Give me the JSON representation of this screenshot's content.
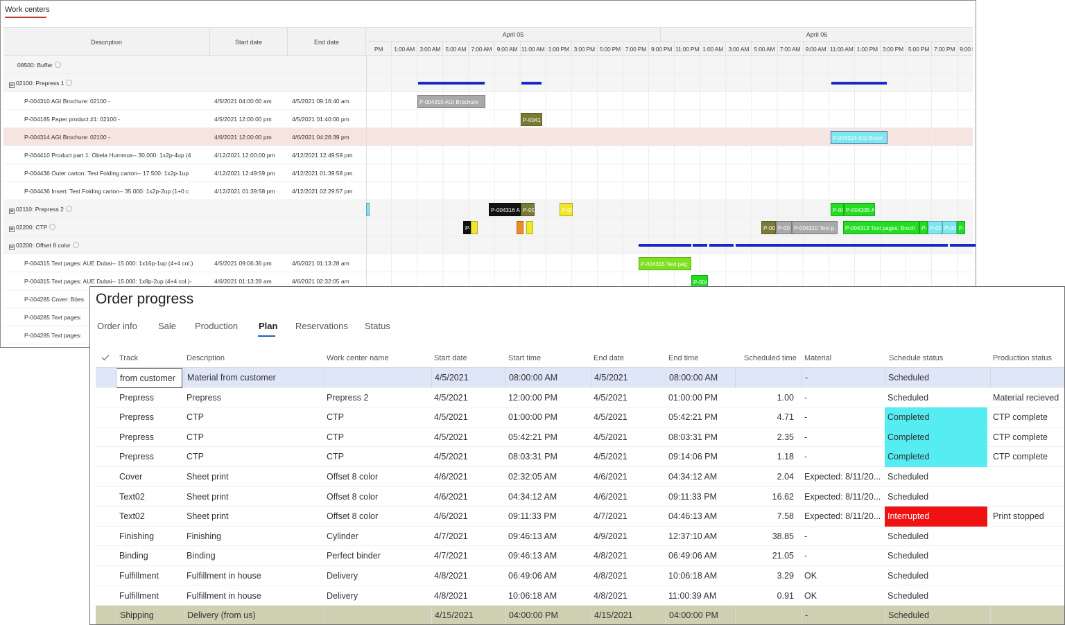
{
  "work_centers": {
    "title": "Work centers",
    "columns": {
      "description": "Description",
      "start": "Start date",
      "end": "End date"
    },
    "days": [
      "April 05",
      "April 06"
    ],
    "hours": [
      "PM",
      "1:00 AM",
      "3:00 AM",
      "5:00 AM",
      "7:00 AM",
      "9:00 AM",
      "11:00 AM",
      "1:00 PM",
      "3:00 PM",
      "5:00 PM",
      "7:00 PM",
      "9:00 PM",
      "11:00 PM",
      "1:00 AM",
      "3:00 AM",
      "5:00 AM",
      "7:00 AM",
      "9:00 AM",
      "11:00 AM",
      "1:00 PM",
      "3:00 PM",
      "5:00 PM",
      "7:00 PM",
      "9:00 PM",
      "1"
    ],
    "rows": [
      {
        "type": "group",
        "label": "08500: Buffer",
        "icon": "",
        "start": "",
        "end": ""
      },
      {
        "type": "group",
        "label": "02100: Prepress 1",
        "icon": "⊟",
        "start": "",
        "end": ""
      },
      {
        "type": "item",
        "label": "P-004310 AGI Brochure: 02100 -",
        "start": "4/5/2021 04:00:00 am",
        "end": "4/5/2021 09:16:40 am"
      },
      {
        "type": "item",
        "label": "P-004185 Paper product #1: 02100 -",
        "start": "4/5/2021 12:00:00 pm",
        "end": "4/5/2021 01:40:00 pm"
      },
      {
        "type": "item",
        "selected": true,
        "label": "P-004314 AGI Brochure: 02100 -",
        "start": "4/6/2021 12:00:00 pm",
        "end": "4/6/2021 04:26:39 pm"
      },
      {
        "type": "item",
        "label": "P-004410 Product part 1: Obela Hummus-- 30.000: 1x2p-4up (4",
        "start": "4/12/2021 12:00:00 pm",
        "end": "4/12/2021 12:49:59 pm"
      },
      {
        "type": "item",
        "label": "P-004436 Outer carton: Test Folding carton-- 17.500: 1x2p-1up",
        "start": "4/12/2021 12:49:59 pm",
        "end": "4/12/2021 01:39:58 pm"
      },
      {
        "type": "item",
        "label": "P-004436 Insert: Test Folding carton-- 35.000: 1x2p-2up (1+0 c",
        "start": "4/12/2021 01:39:58 pm",
        "end": "4/12/2021 02:29:57 pm"
      },
      {
        "type": "group",
        "label": "02110: Prepress 2",
        "icon": "⊞",
        "start": "",
        "end": ""
      },
      {
        "type": "group",
        "label": "02200: CTP",
        "icon": "⊞",
        "start": "",
        "end": ""
      },
      {
        "type": "group",
        "label": "03200: Offset 8 color",
        "icon": "⊟",
        "start": "",
        "end": ""
      },
      {
        "type": "item",
        "label": "P-004315 Text pages: AUE Dubai-- 15.000: 1x16p-1up (4+4 col.)",
        "start": "4/5/2021 09:06:36 pm",
        "end": "4/6/2021 01:13:28 am"
      },
      {
        "type": "item",
        "label": "P-004315 Text pages: AUE Dubai-- 15.000: 1x8p-2up (4+4 col.)-",
        "start": "4/6/2021 01:13:28 am",
        "end": "4/6/2021 02:32:05 am"
      },
      {
        "type": "item",
        "label": "P-004285 Cover: Böes",
        "start": "",
        "end": ""
      },
      {
        "type": "item",
        "label": "P-004285 Text pages:",
        "start": "",
        "end": ""
      },
      {
        "type": "item",
        "label": "P-004285 Text pages:",
        "start": "",
        "end": ""
      }
    ],
    "bars": [
      {
        "label": "P-004310 AGI Brochure",
        "color": "#a9a9a9"
      },
      {
        "label": "P-0041",
        "color": "#7a7a35"
      },
      {
        "label": "P-004314 AGI Broch",
        "color": "#7ee6ee"
      },
      {
        "label": "",
        "color": "#7ee6ee"
      },
      {
        "label": "P-004316 A",
        "color": "#111111"
      },
      {
        "label": "P-00",
        "color": "#7a7a35"
      },
      {
        "label": "P-00",
        "color": "#f2e62a"
      },
      {
        "label": "P-00",
        "color": "#22dd22"
      },
      {
        "label": "P-004335 A",
        "color": "#22dd22"
      },
      {
        "label": "P-",
        "color": "#111111"
      },
      {
        "label": "",
        "color": "#f2e62a"
      },
      {
        "label": "",
        "color": "#f08a24"
      },
      {
        "label": "",
        "color": "#f2e62a"
      },
      {
        "label": "P-00",
        "color": "#7a7a35"
      },
      {
        "label": "P-00",
        "color": "#a9a9a9"
      },
      {
        "label": "P-004310 Text p",
        "color": "#a9a9a9"
      },
      {
        "label": "P-004313 Text pages: Broch",
        "color": "#22dd22"
      },
      {
        "label": "P-",
        "color": "#22dd22"
      },
      {
        "label": "P-00",
        "color": "#7ee6ee"
      },
      {
        "label": "P-00",
        "color": "#7ee6ee"
      },
      {
        "label": "P-",
        "color": "#22dd22"
      },
      {
        "label": "P-004315 Text pag",
        "color": "#7fe020"
      },
      {
        "label": "P-004",
        "color": "#22dd22"
      }
    ]
  },
  "order_progress": {
    "title": "Order progress",
    "tabs": [
      "Order info",
      "Sale",
      "Production",
      "Plan",
      "Reservations",
      "Status"
    ],
    "active_tab": "Plan",
    "columns": [
      "Track",
      "Description",
      "Work center name",
      "Start date",
      "Start time",
      "End date",
      "End time",
      "Scheduled time",
      "Material",
      "Schedule status",
      "Production status"
    ],
    "rows": [
      {
        "track": "from customer",
        "description": "Material from customer",
        "work_center": "",
        "start_date": "4/5/2021",
        "start_time": "08:00:00 AM",
        "end_date": "4/5/2021",
        "end_time": "08:00:00 AM",
        "scheduled": "",
        "material": "-",
        "schedule_status": "Scheduled",
        "production_status": ""
      },
      {
        "track": "Prepress",
        "description": "Prepress",
        "work_center": "Prepress 2",
        "start_date": "4/5/2021",
        "start_time": "12:00:00 PM",
        "end_date": "4/5/2021",
        "end_time": "01:00:00 PM",
        "scheduled": "1.00",
        "material": "-",
        "schedule_status": "Scheduled",
        "production_status": "Material recieved"
      },
      {
        "track": "Prepress",
        "description": "CTP",
        "work_center": "CTP",
        "start_date": "4/5/2021",
        "start_time": "01:00:00 PM",
        "end_date": "4/5/2021",
        "end_time": "05:42:21 PM",
        "scheduled": "4.71",
        "material": "-",
        "schedule_status": "Completed",
        "production_status": "CTP complete"
      },
      {
        "track": "Prepress",
        "description": "CTP",
        "work_center": "CTP",
        "start_date": "4/5/2021",
        "start_time": "05:42:21 PM",
        "end_date": "4/5/2021",
        "end_time": "08:03:31 PM",
        "scheduled": "2.35",
        "material": "-",
        "schedule_status": "Completed",
        "production_status": "CTP complete"
      },
      {
        "track": "Prepress",
        "description": "CTP",
        "work_center": "CTP",
        "start_date": "4/5/2021",
        "start_time": "08:03:31 PM",
        "end_date": "4/5/2021",
        "end_time": "09:14:06 PM",
        "scheduled": "1.18",
        "material": "-",
        "schedule_status": "Completed",
        "production_status": "CTP complete"
      },
      {
        "track": "Cover",
        "description": "Sheet print",
        "work_center": "Offset 8 color",
        "start_date": "4/6/2021",
        "start_time": "02:32:05 AM",
        "end_date": "4/6/2021",
        "end_time": "04:34:12 AM",
        "scheduled": "2.04",
        "material": "Expected: 8/11/20...",
        "schedule_status": "Scheduled",
        "production_status": ""
      },
      {
        "track": "Text02",
        "description": "Sheet print",
        "work_center": "Offset 8 color",
        "start_date": "4/6/2021",
        "start_time": "04:34:12 AM",
        "end_date": "4/6/2021",
        "end_time": "09:11:33 PM",
        "scheduled": "16.62",
        "material": "Expected: 8/11/20...",
        "schedule_status": "Scheduled",
        "production_status": ""
      },
      {
        "track": "Text02",
        "description": "Sheet print",
        "work_center": "Offset 8 color",
        "start_date": "4/6/2021",
        "start_time": "09:11:33 PM",
        "end_date": "4/7/2021",
        "end_time": "04:46:13 AM",
        "scheduled": "7.58",
        "material": "Expected: 8/11/20...",
        "schedule_status": "Interrupted",
        "production_status": "Print stopped"
      },
      {
        "track": "Finishing",
        "description": "Finishing",
        "work_center": "Cylinder",
        "start_date": "4/7/2021",
        "start_time": "09:46:13 AM",
        "end_date": "4/9/2021",
        "end_time": "12:37:10 AM",
        "scheduled": "38.85",
        "material": "-",
        "schedule_status": "Scheduled",
        "production_status": ""
      },
      {
        "track": "Binding",
        "description": "Binding",
        "work_center": "Perfect binder",
        "start_date": "4/7/2021",
        "start_time": "09:46:13 AM",
        "end_date": "4/8/2021",
        "end_time": "06:49:06 AM",
        "scheduled": "21.05",
        "material": "-",
        "schedule_status": "Scheduled",
        "production_status": ""
      },
      {
        "track": "Fulfillment",
        "description": "Fulfillment in house",
        "work_center": "Delivery",
        "start_date": "4/8/2021",
        "start_time": "06:49:06 AM",
        "end_date": "4/8/2021",
        "end_time": "10:06:18 AM",
        "scheduled": "3.29",
        "material": "OK",
        "schedule_status": "Scheduled",
        "production_status": ""
      },
      {
        "track": "Fulfillment",
        "description": "Fulfillment in house",
        "work_center": "Delivery",
        "start_date": "4/8/2021",
        "start_time": "10:06:18 AM",
        "end_date": "4/8/2021",
        "end_time": "11:00:39 AM",
        "scheduled": "0.91",
        "material": "OK",
        "schedule_status": "Scheduled",
        "production_status": ""
      },
      {
        "track": "Shipping",
        "description": "Delivery (from us)",
        "work_center": "",
        "start_date": "4/15/2021",
        "start_time": "04:00:00 PM",
        "end_date": "4/15/2021",
        "end_time": "04:00:00 PM",
        "scheduled": "",
        "material": "-",
        "schedule_status": "Scheduled",
        "production_status": ""
      }
    ]
  }
}
